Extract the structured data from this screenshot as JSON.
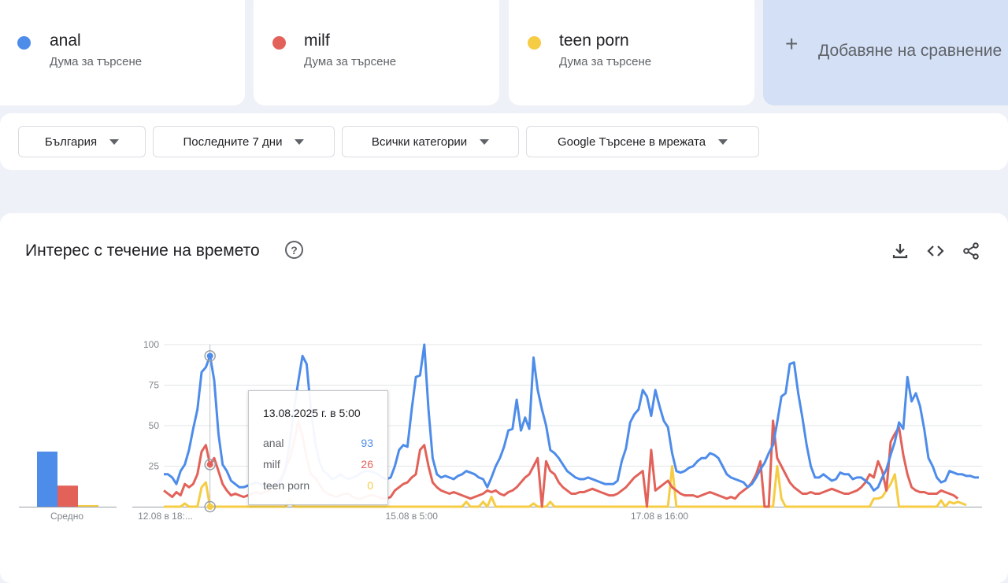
{
  "terms": [
    {
      "name": "anal",
      "sub": "Дума за търсене",
      "color": "#4e8cea"
    },
    {
      "name": "milf",
      "sub": "Дума за търсене",
      "color": "#e2625a"
    },
    {
      "name": "teen porn",
      "sub": "Дума за търсене",
      "color": "#f5cc44"
    }
  ],
  "add_comparison": "Добавяне на сравнение",
  "filters": {
    "region": "България",
    "period": "Последните 7 дни",
    "category": "Всички категории",
    "search_type": "Google Търсене в мрежата"
  },
  "section": {
    "title": "Интерес с течение на времето"
  },
  "average_label": "Средно",
  "tooltip": {
    "date": "13.08.2025 г. в 5:00",
    "rows": [
      {
        "name": "anal",
        "value": "93"
      },
      {
        "name": "milf",
        "value": "26"
      },
      {
        "name": "teen porn",
        "value": "0"
      }
    ]
  },
  "chart_data": {
    "type": "line",
    "yticks": [
      25,
      50,
      75,
      100
    ],
    "ylim": [
      0,
      100
    ],
    "x_tick_labels": [
      "12.08 в 18:...",
      "15.08 в 5:00",
      "17.08 в 16:00"
    ],
    "x_tick_index": [
      0,
      59,
      118
    ],
    "averages": [
      {
        "name": "anal",
        "value": 34
      },
      {
        "name": "milf",
        "value": 13
      },
      {
        "name": "teen porn",
        "value": 1
      }
    ],
    "highlight_index": 11,
    "series": [
      {
        "name": "anal",
        "color": "#4e8cea",
        "values": [
          20,
          20,
          18,
          14,
          22,
          26,
          35,
          48,
          60,
          83,
          86,
          93,
          78,
          45,
          26,
          22,
          16,
          14,
          12,
          12,
          13,
          14,
          15,
          14,
          13,
          12,
          13,
          14,
          16,
          24,
          40,
          60,
          77,
          93,
          88,
          60,
          40,
          28,
          22,
          20,
          17,
          18,
          20,
          18,
          17,
          18,
          19,
          21,
          22,
          22,
          21,
          20,
          18,
          17,
          18,
          25,
          35,
          38,
          37,
          60,
          80,
          81,
          100,
          60,
          30,
          20,
          18,
          19,
          18,
          17,
          19,
          20,
          22,
          21,
          20,
          18,
          17,
          12,
          18,
          25,
          30,
          37,
          47,
          48,
          66,
          47,
          55,
          48,
          92,
          72,
          60,
          50,
          35,
          33,
          30,
          26,
          22,
          20,
          18,
          17,
          17,
          18,
          17,
          16,
          15,
          14,
          14,
          14,
          16,
          28,
          36,
          52,
          57,
          60,
          72,
          68,
          56,
          72,
          62,
          53,
          49,
          33,
          22,
          21,
          22,
          24,
          25,
          28,
          30,
          30,
          33,
          32,
          30,
          25,
          20,
          18,
          17,
          16,
          15,
          12,
          14,
          18,
          23,
          27,
          33,
          38,
          52,
          68,
          70,
          88,
          89,
          70,
          55,
          38,
          25,
          18,
          18,
          20,
          18,
          16,
          17,
          21,
          20,
          20,
          17,
          18,
          18,
          16,
          14,
          10,
          12,
          18,
          23,
          32,
          40,
          52,
          48,
          80,
          65,
          70,
          62,
          48,
          30,
          25,
          18,
          15,
          16,
          22,
          21,
          20,
          20,
          19,
          19,
          18,
          18
        ]
      },
      {
        "name": "milf",
        "color": "#e2625a",
        "values": [
          10,
          8,
          6,
          9,
          7,
          14,
          12,
          14,
          20,
          34,
          38,
          26,
          30,
          22,
          14,
          10,
          7,
          8,
          7,
          6,
          7,
          8,
          9,
          8,
          9,
          10,
          12,
          14,
          18,
          24,
          30,
          40,
          53,
          44,
          30,
          20,
          18,
          14,
          10,
          8,
          7,
          6,
          7,
          8,
          8,
          6,
          5,
          5,
          6,
          7,
          7,
          6,
          5,
          5,
          6,
          10,
          12,
          14,
          15,
          18,
          20,
          35,
          38,
          25,
          15,
          12,
          10,
          9,
          8,
          9,
          8,
          7,
          6,
          5,
          6,
          7,
          8,
          10,
          9,
          10,
          8,
          7,
          9,
          10,
          12,
          15,
          18,
          20,
          25,
          30,
          0,
          28,
          22,
          20,
          15,
          12,
          10,
          8,
          8,
          9,
          9,
          10,
          11,
          10,
          9,
          8,
          7,
          7,
          8,
          10,
          12,
          15,
          18,
          20,
          22,
          0,
          35,
          10,
          12,
          14,
          16,
          12,
          10,
          8,
          7,
          7,
          7,
          6,
          7,
          8,
          9,
          8,
          7,
          6,
          5,
          6,
          5,
          8,
          10,
          12,
          15,
          20,
          28,
          0,
          0,
          53,
          30,
          25,
          20,
          15,
          12,
          10,
          8,
          8,
          9,
          8,
          8,
          9,
          10,
          11,
          10,
          9,
          8,
          8,
          9,
          10,
          12,
          15,
          20,
          18,
          28,
          22,
          10,
          40,
          45,
          49,
          32,
          20,
          12,
          10,
          9,
          9,
          8,
          8,
          8,
          10,
          9,
          8,
          7,
          5
        ]
      },
      {
        "name": "teen porn",
        "color": "#f5cc44",
        "values": [
          0,
          0,
          0,
          0,
          0,
          2,
          0,
          0,
          0,
          12,
          15,
          0,
          0,
          0,
          0,
          0,
          0,
          0,
          0,
          0,
          0,
          0,
          0,
          0,
          0,
          0,
          0,
          0,
          0,
          0,
          5,
          0,
          0,
          0,
          0,
          0,
          0,
          0,
          0,
          0,
          0,
          0,
          0,
          0,
          0,
          0,
          0,
          0,
          0,
          0,
          0,
          0,
          0,
          0,
          0,
          0,
          0,
          0,
          0,
          0,
          0,
          0,
          0,
          0,
          0,
          0,
          0,
          0,
          0,
          0,
          0,
          0,
          3,
          0,
          0,
          0,
          3,
          0,
          6,
          0,
          0,
          0,
          0,
          0,
          0,
          0,
          0,
          0,
          2,
          0,
          0,
          0,
          3,
          0,
          0,
          0,
          0,
          0,
          0,
          0,
          0,
          0,
          0,
          0,
          0,
          0,
          0,
          0,
          0,
          0,
          0,
          0,
          0,
          0,
          0,
          0,
          0,
          0,
          0,
          0,
          0,
          25,
          0,
          0,
          0,
          0,
          0,
          0,
          0,
          0,
          0,
          0,
          0,
          0,
          0,
          0,
          0,
          0,
          0,
          0,
          0,
          0,
          0,
          0,
          0,
          0,
          25,
          5,
          0,
          0,
          0,
          0,
          0,
          0,
          0,
          0,
          0,
          0,
          0,
          0,
          0,
          0,
          0,
          0,
          0,
          0,
          0,
          0,
          0,
          5,
          5,
          6,
          10,
          14,
          20,
          0,
          0,
          0,
          0,
          0,
          0,
          0,
          0,
          0,
          0,
          4,
          0,
          3,
          2,
          3,
          2,
          1
        ]
      }
    ]
  }
}
